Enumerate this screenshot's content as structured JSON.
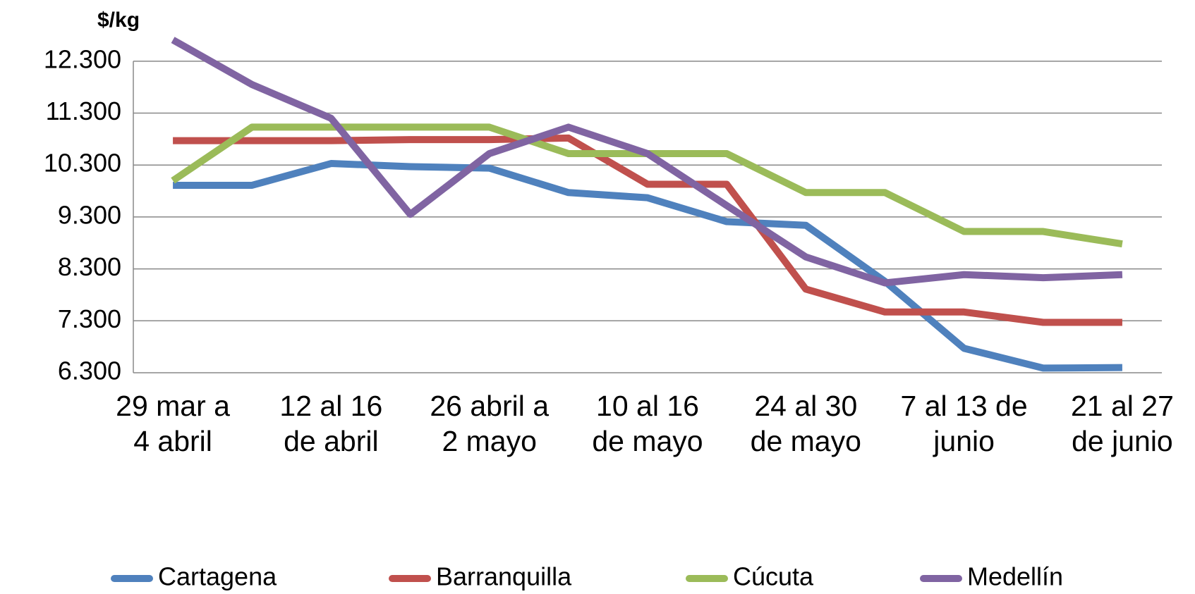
{
  "chart_data": {
    "type": "line",
    "y_label": "$/kg",
    "categories": [
      "29 mar a\n4 abril",
      null,
      "12 al 16\nde abril",
      null,
      "26 abril a\n2 mayo",
      null,
      "10 al 16\nde mayo",
      null,
      "24 al 30\nde mayo",
      null,
      "7 al 13 de\njunio",
      null,
      "21 al 27\nde junio"
    ],
    "series": [
      {
        "name": "Cartagena",
        "color": "#4f81bd",
        "values": [
          9910,
          9910,
          10330,
          10270,
          10240,
          9770,
          9670,
          9210,
          9140,
          8060,
          6770,
          6390,
          6400
        ]
      },
      {
        "name": "Barranquilla",
        "color": "#c0504d",
        "values": [
          10770,
          10770,
          10770,
          10790,
          10790,
          10820,
          9930,
          9930,
          7910,
          7470,
          7470,
          7270,
          7270
        ]
      },
      {
        "name": "Cúcuta",
        "color": "#9bbb59",
        "values": [
          10000,
          11030,
          11030,
          11030,
          11030,
          10520,
          10520,
          10520,
          9770,
          9770,
          9020,
          9020,
          8780
        ]
      },
      {
        "name": "Medellín",
        "color": "#8064a2",
        "values": [
          12710,
          11850,
          11200,
          9350,
          10520,
          11030,
          10520,
          9520,
          8530,
          8030,
          8190,
          8130,
          8190
        ]
      }
    ],
    "ylim": [
      6300,
      12800
    ],
    "yticks": [
      {
        "value": 6300,
        "label": "6.300"
      },
      {
        "value": 7300,
        "label": "7.300"
      },
      {
        "value": 8300,
        "label": "8.300"
      },
      {
        "value": 9300,
        "label": "9.300"
      },
      {
        "value": 10300,
        "label": "10.300"
      },
      {
        "value": 11300,
        "label": "11.300"
      },
      {
        "value": 12300,
        "label": "12.300"
      }
    ],
    "grid": true,
    "legend": "bottom"
  }
}
